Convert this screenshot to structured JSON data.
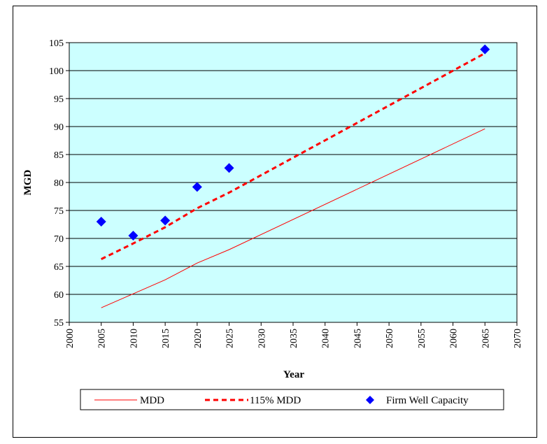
{
  "chart_data": {
    "type": "line",
    "xlabel": "Year",
    "ylabel": "MGD",
    "xlim": [
      2000,
      2070
    ],
    "ylim": [
      55,
      105
    ],
    "x_ticks": [
      2000,
      2005,
      2010,
      2015,
      2020,
      2025,
      2030,
      2035,
      2040,
      2045,
      2050,
      2055,
      2060,
      2065,
      2070
    ],
    "y_ticks": [
      55,
      60,
      65,
      70,
      75,
      80,
      85,
      90,
      95,
      100,
      105
    ],
    "grid": "horizontal",
    "plot_background": "#ccffff",
    "legend_position": "bottom",
    "series": [
      {
        "name": "MDD",
        "style": "solid-line",
        "color": "#ff0000",
        "x": [
          2005,
          2010,
          2015,
          2020,
          2025,
          2065
        ],
        "y": [
          57.6,
          60.1,
          62.6,
          65.6,
          68.0,
          89.6
        ]
      },
      {
        "name": "115% MDD",
        "style": "dashed-line",
        "color": "#ff0000",
        "x": [
          2005,
          2010,
          2015,
          2020,
          2025,
          2065
        ],
        "y": [
          66.3,
          69.1,
          72.0,
          75.4,
          78.2,
          103.1
        ]
      },
      {
        "name": "Firm Well Capacity",
        "style": "diamond-markers",
        "color": "#0000ff",
        "x": [
          2005,
          2010,
          2015,
          2020,
          2025,
          2065
        ],
        "y": [
          73.0,
          70.5,
          73.2,
          79.2,
          82.6,
          103.8
        ]
      }
    ]
  }
}
